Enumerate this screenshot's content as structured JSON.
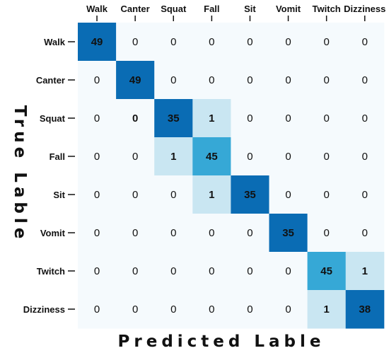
{
  "chart_data": {
    "type": "heatmap",
    "title": "",
    "xlabel": "Predicted Lable",
    "ylabel": "True Lable",
    "x_categories": [
      "Walk",
      "Canter",
      "Squat",
      "Fall",
      "Sit",
      "Vomit",
      "Twitch",
      "Dizziness"
    ],
    "y_categories": [
      "Walk",
      "Canter",
      "Squat",
      "Fall",
      "Sit",
      "Vomit",
      "Twitch",
      "Dizziness"
    ],
    "values": [
      [
        49,
        0,
        0,
        0,
        0,
        0,
        0,
        0
      ],
      [
        0,
        49,
        0,
        0,
        0,
        0,
        0,
        0
      ],
      [
        0,
        0,
        35,
        1,
        0,
        0,
        0,
        0
      ],
      [
        0,
        0,
        1,
        45,
        0,
        0,
        0,
        0
      ],
      [
        0,
        0,
        0,
        1,
        35,
        0,
        0,
        0
      ],
      [
        0,
        0,
        0,
        0,
        0,
        35,
        0,
        0
      ],
      [
        0,
        0,
        0,
        0,
        0,
        0,
        45,
        1
      ],
      [
        0,
        0,
        0,
        0,
        0,
        0,
        1,
        38
      ]
    ],
    "colors": {
      "zero": "#f5fafd",
      "one": "#c9e6f2",
      "mid": "#36a8d6",
      "high": "#0a6cb4"
    }
  }
}
